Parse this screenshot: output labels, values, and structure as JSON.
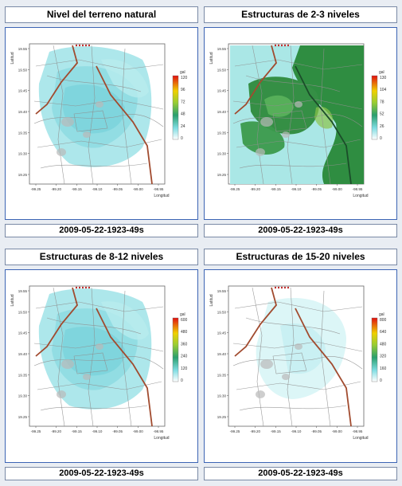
{
  "colors": {
    "water": "#bfeff0",
    "green": "#2e8b3d",
    "road": "#8f8f8f",
    "brown": "#a14b2f",
    "red": "#c03030",
    "dark": "#1b4d2a"
  },
  "axis": {
    "latitude_label": "Latitud",
    "longitude_label": "Longitud",
    "lat_ticks": [
      "19.55",
      "19.50",
      "19.45",
      "19.40",
      "19.35",
      "19.30",
      "19.25"
    ],
    "lon_ticks": [
      "-99.25",
      "-99.20",
      "-99.15",
      "-99.10",
      "-99.05",
      "-99.00",
      "-98.95"
    ]
  },
  "panels": [
    {
      "title": "Nivel del terreno natural",
      "timestamp": "2009-05-22-1923-49s",
      "fill_style": "light",
      "colorbar": {
        "unit": "gal",
        "ticks": [
          "120",
          "96",
          "72",
          "48",
          "24",
          "0"
        ]
      }
    },
    {
      "title": "Estructuras de 2-3 niveles",
      "timestamp": "2009-05-22-1923-49s",
      "fill_style": "green",
      "colorbar": {
        "unit": "gal",
        "ticks": [
          "130",
          "104",
          "78",
          "52",
          "26",
          "0"
        ]
      }
    },
    {
      "title": "Estructuras de 8-12 niveles",
      "timestamp": "2009-05-22-1923-49s",
      "fill_style": "light",
      "colorbar": {
        "unit": "gal",
        "ticks": [
          "600",
          "480",
          "360",
          "240",
          "120",
          "0"
        ]
      }
    },
    {
      "title": "Estructuras de 15-20 niveles",
      "timestamp": "2009-05-22-1923-49s",
      "fill_style": "pale",
      "colorbar": {
        "unit": "gal",
        "ticks": [
          "800",
          "640",
          "480",
          "320",
          "160",
          "0"
        ]
      }
    }
  ]
}
